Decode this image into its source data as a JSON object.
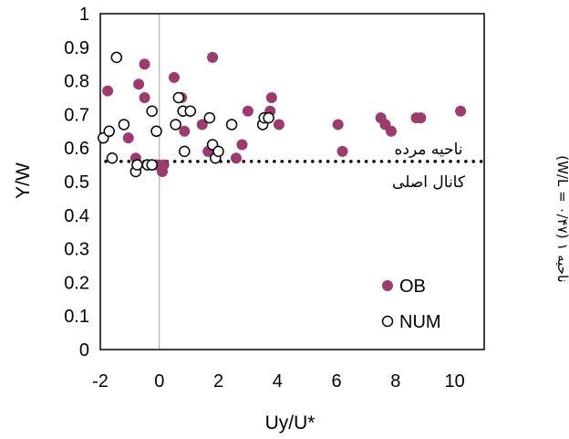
{
  "chart_data": {
    "type": "scatter",
    "xlabel": "Uy/U*",
    "ylabel": "Y/W",
    "xlim": [
      -2,
      11
    ],
    "ylim": [
      0,
      1
    ],
    "x_ticks": [
      "-2",
      "0",
      "2",
      "4",
      "6",
      "8",
      "10"
    ],
    "x_tick_values": [
      -2,
      0,
      2,
      4,
      6,
      8,
      10
    ],
    "y_ticks": [
      "0",
      "0.1",
      "0.2",
      "0.3",
      "0.4",
      "0.5",
      "0.6",
      "0.7",
      "0.8",
      "0.9",
      "1"
    ],
    "y_tick_values": [
      0,
      0.1,
      0.2,
      0.3,
      0.4,
      0.5,
      0.6,
      0.7,
      0.8,
      0.9,
      1
    ],
    "reference_line": {
      "y": 0.56,
      "style": "dotted"
    },
    "zero_line": {
      "x": 0
    },
    "annotations": {
      "above": "ناحیه مرده",
      "below": "کانال اصلی"
    },
    "side_label": "ناحیه ۱ (W/L = ۰/۴۷)",
    "legend_position": "bottom-right",
    "colors": {
      "OB": "#9b3b6e",
      "NUM": "#000000"
    },
    "series": [
      {
        "name": "OB",
        "marker": "filled-circle",
        "points": [
          [
            -1.75,
            0.77
          ],
          [
            -1.05,
            0.63
          ],
          [
            -0.7,
            0.79
          ],
          [
            -0.5,
            0.85
          ],
          [
            -0.5,
            0.75
          ],
          [
            -0.8,
            0.57
          ],
          [
            -0.1,
            0.55
          ],
          [
            0.1,
            0.53
          ],
          [
            0.15,
            0.55
          ],
          [
            0.5,
            0.81
          ],
          [
            0.75,
            0.75
          ],
          [
            0.85,
            0.65
          ],
          [
            1.45,
            0.67
          ],
          [
            1.65,
            0.59
          ],
          [
            1.8,
            0.87
          ],
          [
            1.9,
            0.58
          ],
          [
            2.6,
            0.57
          ],
          [
            2.8,
            0.61
          ],
          [
            3.0,
            0.71
          ],
          [
            3.75,
            0.71
          ],
          [
            3.8,
            0.75
          ],
          [
            4.05,
            0.67
          ],
          [
            6.05,
            0.67
          ],
          [
            6.2,
            0.59
          ],
          [
            7.5,
            0.69
          ],
          [
            7.65,
            0.67
          ],
          [
            7.85,
            0.65
          ],
          [
            8.7,
            0.69
          ],
          [
            8.85,
            0.69
          ],
          [
            10.2,
            0.71
          ]
        ]
      },
      {
        "name": "NUM",
        "marker": "open-circle",
        "points": [
          [
            -1.9,
            0.63
          ],
          [
            -1.7,
            0.65
          ],
          [
            -1.6,
            0.57
          ],
          [
            -1.45,
            0.87
          ],
          [
            -1.2,
            0.67
          ],
          [
            -0.8,
            0.53
          ],
          [
            -0.75,
            0.55
          ],
          [
            -0.4,
            0.55
          ],
          [
            -0.25,
            0.55
          ],
          [
            -0.25,
            0.71
          ],
          [
            -0.1,
            0.65
          ],
          [
            0.55,
            0.67
          ],
          [
            0.65,
            0.75
          ],
          [
            0.8,
            0.71
          ],
          [
            0.85,
            0.59
          ],
          [
            1.05,
            0.71
          ],
          [
            1.7,
            0.69
          ],
          [
            1.8,
            0.61
          ],
          [
            1.9,
            0.57
          ],
          [
            2.0,
            0.59
          ],
          [
            2.45,
            0.67
          ],
          [
            3.5,
            0.67
          ],
          [
            3.55,
            0.69
          ],
          [
            3.7,
            0.69
          ]
        ]
      }
    ]
  }
}
